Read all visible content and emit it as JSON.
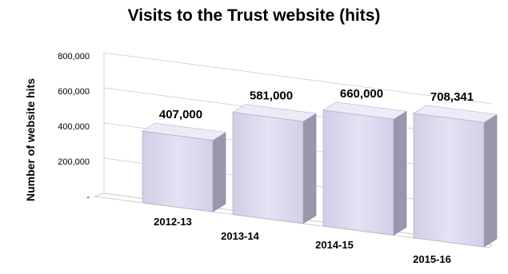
{
  "chart_data": {
    "type": "bar",
    "title": "Visits to the Trust website (hits)",
    "ylabel": "Number of website hits",
    "xlabel": "",
    "categories": [
      "2012-13",
      "2013-14",
      "2014-15",
      "2015-16"
    ],
    "values": [
      407000,
      581000,
      660000,
      708341
    ],
    "data_labels": [
      "407,000",
      "581,000",
      "660,000",
      "708,341"
    ],
    "ylim": [
      0,
      800000
    ],
    "yticks": [
      0,
      200000,
      400000,
      600000,
      800000
    ],
    "ytick_labels": [
      "-",
      "200,000",
      "400,000",
      "600,000",
      "800,000"
    ],
    "grid": true,
    "style": "3d-column",
    "bar_color": "#ddd8ee"
  }
}
